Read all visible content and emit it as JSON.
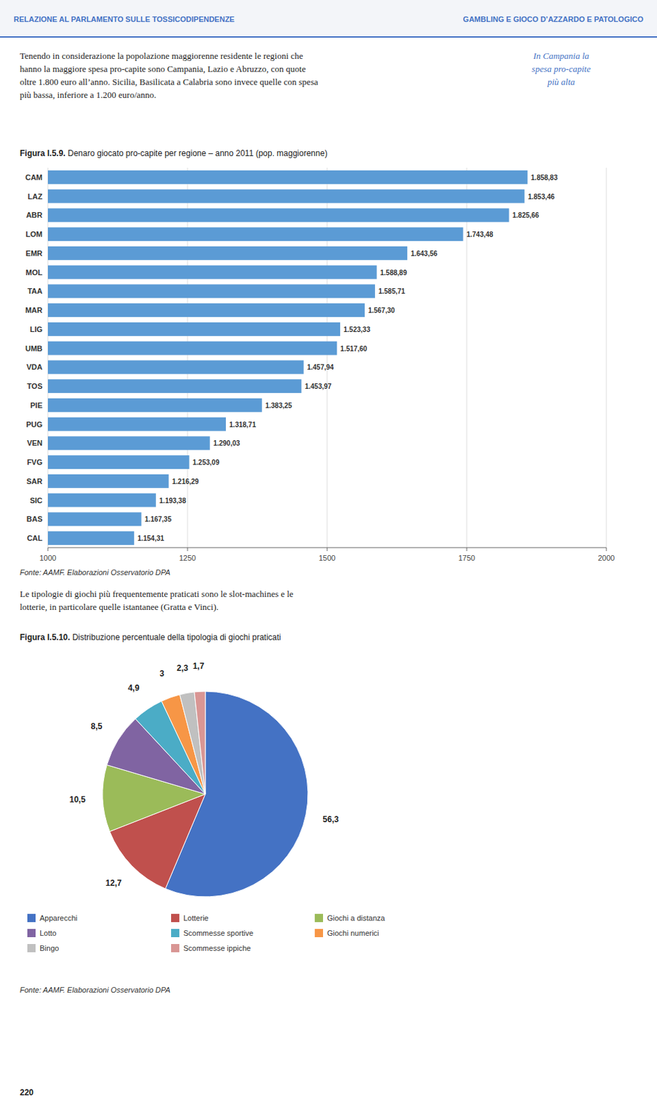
{
  "page_text": {
    "header_left": "RELAZIONE AL PARLAMENTO SULLE TOSSICODIPENDENZE",
    "header_right": "GAMBLING E GIOCO D’AZZARDO E PATOLOGICO",
    "main_text": [
      "Tenendo in considerazione la popolazione maggiorenne residente le regioni che",
      "hanno la maggiore spesa pro-capite sono Campania, Lazio e Abruzzo, con quote",
      "oltre 1.800 euro all’anno. Sicilia, Basilicata a Calabria sono invece quelle con spesa",
      "più bassa, inferiore a 1.200 euro/anno."
    ],
    "sidebar_text": [
      "In Campania la",
      "spesa pro-capite",
      "più alta"
    ],
    "mid_text": [
      "Le tipologie di giochi più frequentemente praticati sono le slot-machines e le",
      "lotterie, in particolare quelle istantanee (Gratta e Vinci)."
    ],
    "page_number": "220"
  },
  "chart_data": [
    {
      "type": "bar",
      "orientation": "horizontal",
      "title": "Figura I.5.9.",
      "subtitle": " Denaro giocato pro-capite per regione – anno 2011 (pop. maggiorenne)",
      "categories": [
        "CAM",
        "LAZ",
        "ABR",
        "LOM",
        "EMR",
        "MOL",
        "TAA",
        "MAR",
        "LIG",
        "UMB",
        "VDA",
        "TOS",
        "PIE",
        "PUG",
        "VEN",
        "FVG",
        "SAR",
        "SIC",
        "BAS",
        "CAL"
      ],
      "values": [
        1858.83,
        1853.46,
        1825.66,
        1743.48,
        1643.56,
        1588.89,
        1585.71,
        1567.3,
        1523.33,
        1517.6,
        1457.94,
        1453.97,
        1383.25,
        1318.71,
        1290.03,
        1253.09,
        1216.29,
        1193.38,
        1167.35,
        1154.31
      ],
      "value_labels": [
        "1.858,83",
        "1.853,46",
        "1.825,66",
        "1.743,48",
        "1.643,56",
        "1.588,89",
        "1.585,71",
        "1.567,30",
        "1.523,33",
        "1.517,60",
        "1.457,94",
        "1.453,97",
        "1.383,25",
        "1.318,71",
        "1.290,03",
        "1.253,09",
        "1.216,29",
        "1.193,38",
        "1.167,35",
        "1.154,31"
      ],
      "color": "#5B9BD5",
      "xlim": [
        1000,
        2000
      ],
      "xticks": [
        1000,
        1250,
        1500,
        1750,
        2000
      ],
      "grid": true,
      "data_labels": true,
      "annotations": [
        "Fonte: AAMF. Elaborazioni Osservatorio DPA"
      ]
    },
    {
      "type": "pie",
      "title": "Figura I.5.10.",
      "subtitle": " Distribuzione percentuale della tipologia di giochi praticati",
      "categories": [
        "Apparecchi",
        "Lotterie",
        "Giochi a distanza",
        "Lotto",
        "Scommesse sportive",
        "Giochi numerici",
        "Bingo",
        "Scommesse ippiche"
      ],
      "values": [
        56.3,
        12.7,
        10.5,
        8.5,
        4.9,
        3.0,
        2.3,
        1.7
      ],
      "value_labels": [
        "56,3",
        "12,7",
        "10,5",
        "8,5",
        "4,9",
        "3",
        "2,3",
        "1,7"
      ],
      "colors": [
        "#4472C4",
        "#C0504D",
        "#9BBB59",
        "#8064A2",
        "#4BACC6",
        "#F79646",
        "#C0C0C0",
        "#D99694"
      ],
      "data_labels": true,
      "legend": "bottom",
      "annotations": [
        "Fonte: AAMF. Elaborazioni Osservatorio DPA"
      ]
    }
  ]
}
